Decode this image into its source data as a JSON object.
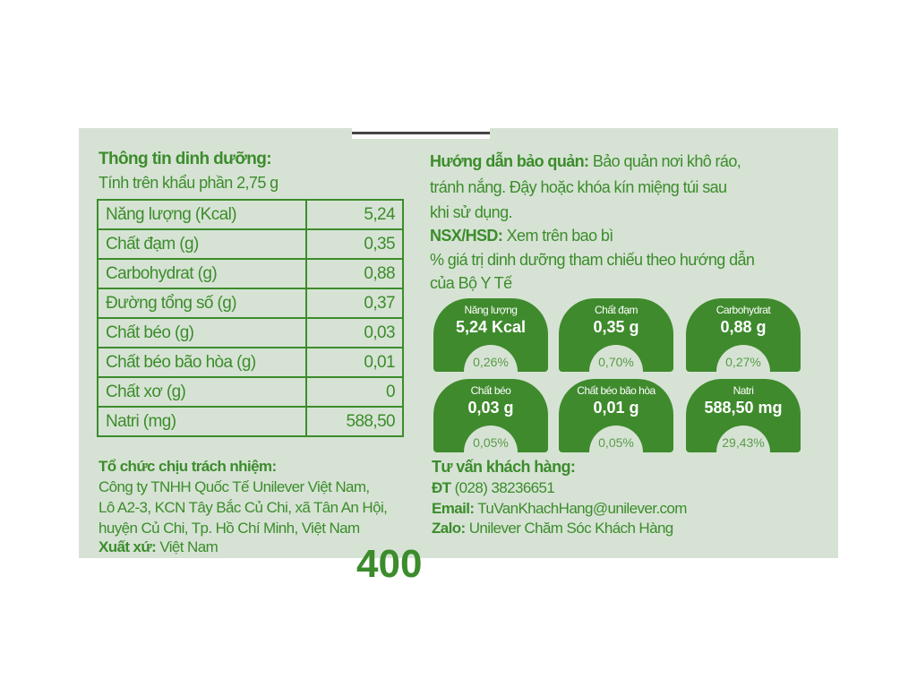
{
  "nutrition": {
    "title": "Thông tin dinh dưỡng:",
    "serving": "Tính trên khẩu phần 2,75 g",
    "rows": [
      {
        "name": "Năng lượng (Kcal)",
        "value": "5,24"
      },
      {
        "name": "Chất đạm (g)",
        "value": "0,35"
      },
      {
        "name": "Carbohydrat (g)",
        "value": "0,88"
      },
      {
        "name": "Đường tổng số (g)",
        "value": "0,37"
      },
      {
        "name": "Chất béo (g)",
        "value": "0,03"
      },
      {
        "name": "Chất béo bão hòa (g)",
        "value": "0,01"
      },
      {
        "name": "Chất xơ (g)",
        "value": "0"
      },
      {
        "name": "Natri (mg)",
        "value": "588,50"
      }
    ]
  },
  "storage": {
    "label": "Hướng dẫn bảo quản:",
    "line1": "Bảo quản nơi khô ráo,",
    "line2": "tránh nắng. Đậy hoặc khóa kín miệng túi sau",
    "line3": "khi sử dụng.",
    "nsx_label": "NSX/HSD:",
    "nsx_value": "Xem trên bao bì",
    "ref1": "% giá trị dinh dưỡng tham chiếu theo hướng dẫn",
    "ref2": "của Bộ Y Tế"
  },
  "badges": [
    {
      "name": "Năng lượng",
      "amount": "5,24 Kcal",
      "percent": "0,26%"
    },
    {
      "name": "Chất đạm",
      "amount": "0,35 g",
      "percent": "0,70%"
    },
    {
      "name": "Carbohydrat",
      "amount": "0,88 g",
      "percent": "0,27%"
    },
    {
      "name": "Chất béo",
      "amount": "0,03 g",
      "percent": "0,05%"
    },
    {
      "name": "Chất béo bão hòa",
      "amount": "0,01 g",
      "percent": "0,05%"
    },
    {
      "name": "Natri",
      "amount": "588,50 mg",
      "percent": "29,43%"
    }
  ],
  "company": {
    "label": "Tổ chức chịu trách nhiệm:",
    "line1": "Công ty TNHH Quốc Tế Unilever Việt Nam,",
    "line2": "Lô A2-3, KCN Tây Bắc Củ Chi, xã Tân An Hội,",
    "line3": "huyện Củ Chi, Tp. Hồ Chí Minh, Việt Nam",
    "origin_label": "Xuất xứ:",
    "origin": "Việt Nam"
  },
  "contact": {
    "label": "Tư vấn khách hàng:",
    "phone_label": "ĐT",
    "phone": "(028) 38236651",
    "email_label": "Email:",
    "email": "TuVanKhachHang@unilever.com",
    "zalo_label": "Zalo:",
    "zalo": "Unilever Chăm Sóc Khách Hàng"
  },
  "weight": "400"
}
